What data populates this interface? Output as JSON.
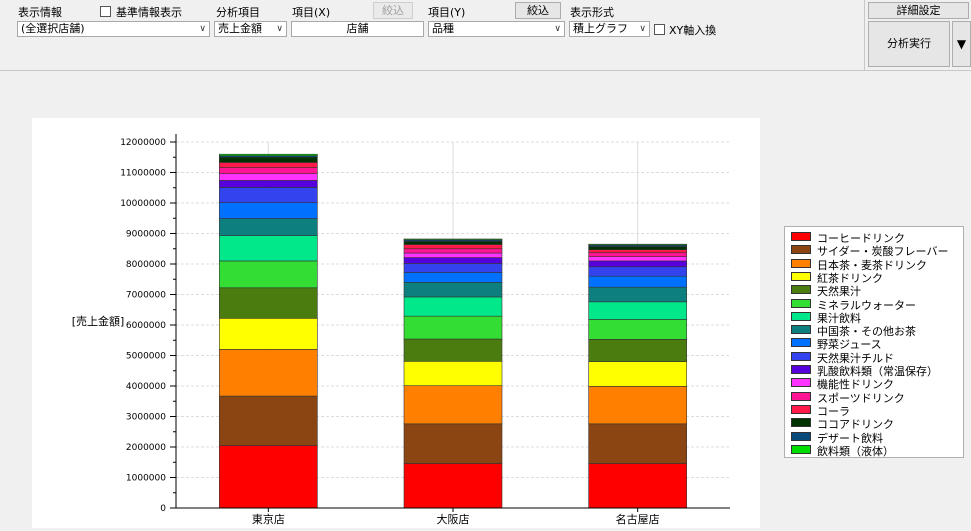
{
  "toolbar": {
    "display_info_label": "表示情報",
    "display_info_value": "(全選択店舗)",
    "base_info_checkbox_label": "基準情報表示",
    "analysis_item_label": "分析項目",
    "analysis_item_value": "売上金額",
    "item_x_label": "項目(X)",
    "item_x_value": "店舗",
    "filter_x_label": "絞込",
    "item_y_label": "項目(Y)",
    "item_y_value": "品種",
    "filter_y_label": "絞込",
    "display_format_label": "表示形式",
    "display_format_value": "積上グラフ",
    "xy_swap_label": "XY軸入換",
    "detail_settings_label": "詳細設定",
    "run_analysis_label": "分析実行",
    "dropdown_glyph": "▼"
  },
  "chart_data": {
    "type": "bar",
    "stacked": true,
    "ylabel": "[売上金額]",
    "ylim": [
      0,
      12000000
    ],
    "yticks": [
      "0",
      "1000000",
      "2000000",
      "3000000",
      "4000000",
      "5000000",
      "6000000",
      "7000000",
      "8000000",
      "9000000",
      "10000000",
      "11000000",
      "12000000"
    ],
    "categories": [
      "東京店",
      "大阪店",
      "名古屋店"
    ],
    "grid": true,
    "legend_position": "right",
    "series": [
      {
        "name": "コーヒードリンク",
        "color": "#ff0000",
        "values": [
          2050000,
          1460000,
          1460000
        ]
      },
      {
        "name": "サイダー・炭酸フレーバー",
        "color": "#8b4513",
        "values": [
          1620000,
          1300000,
          1300000
        ]
      },
      {
        "name": "日本茶・麦茶ドリンク",
        "color": "#ff8000",
        "values": [
          1530000,
          1250000,
          1230000
        ]
      },
      {
        "name": "紅茶ドリンク",
        "color": "#ffff00",
        "values": [
          1020000,
          800000,
          810000
        ]
      },
      {
        "name": "天然果汁",
        "color": "#4a7c10",
        "values": [
          1000000,
          730000,
          730000
        ]
      },
      {
        "name": "ミネラルウォーター",
        "color": "#33dd33",
        "values": [
          880000,
          750000,
          650000
        ]
      },
      {
        "name": "果汁飲料",
        "color": "#00e88a",
        "values": [
          830000,
          630000,
          580000
        ]
      },
      {
        "name": "中国茶・その他お茶",
        "color": "#0e7f7f",
        "values": [
          560000,
          480000,
          480000
        ]
      },
      {
        "name": "野菜ジュース",
        "color": "#0070ff",
        "values": [
          520000,
          320000,
          360000
        ]
      },
      {
        "name": "天然果汁チルド",
        "color": "#3344ee",
        "values": [
          500000,
          300000,
          310000
        ]
      },
      {
        "name": "乳酸飲料類（常温保存）",
        "color": "#5500dd",
        "values": [
          230000,
          190000,
          190000
        ]
      },
      {
        "name": "機能性ドリンク",
        "color": "#ff33ff",
        "values": [
          220000,
          150000,
          140000
        ]
      },
      {
        "name": "スポーツドリンク",
        "color": "#ff1493",
        "values": [
          200000,
          140000,
          130000
        ]
      },
      {
        "name": "コーラ",
        "color": "#ff1a4a",
        "values": [
          170000,
          140000,
          100000
        ]
      },
      {
        "name": "ココアドリンク",
        "color": "#003300",
        "values": [
          170000,
          100000,
          100000
        ]
      },
      {
        "name": "デザート飲料",
        "color": "#0a4a7a",
        "values": [
          50000,
          50000,
          50000
        ]
      },
      {
        "name": "飲料類（液体）",
        "color": "#00dd00",
        "values": [
          50000,
          30000,
          30000
        ]
      }
    ]
  }
}
